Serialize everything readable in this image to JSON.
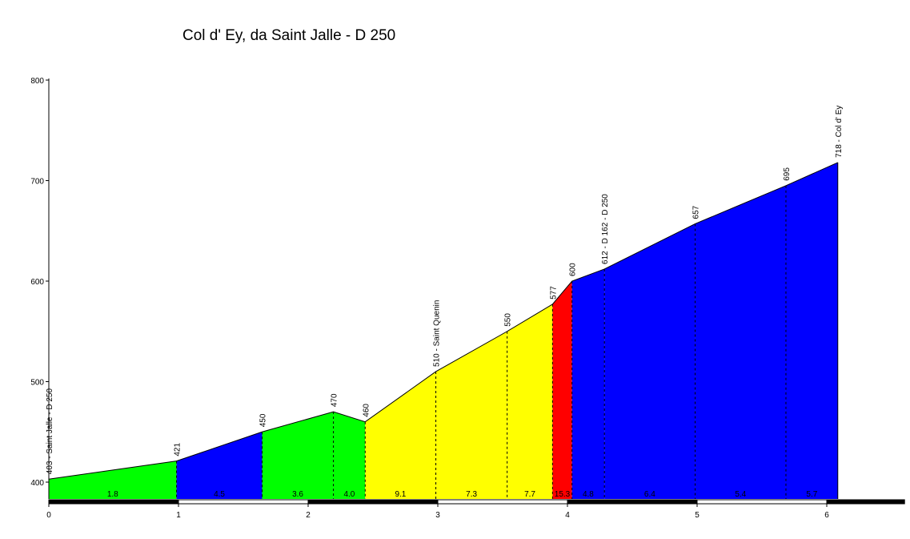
{
  "chart_data": {
    "type": "area",
    "title": "Col d' Ey, da Saint Jalle - D 250",
    "xlabel": "",
    "ylabel": "",
    "xlim": [
      0,
      6.6
    ],
    "ylim": [
      385,
      800
    ],
    "x_ticks": [
      0,
      1,
      2,
      3,
      4,
      5,
      6
    ],
    "y_ticks": [
      400,
      500,
      600,
      700,
      800
    ],
    "grid": false,
    "profile": [
      {
        "x": 0,
        "y": 403
      },
      {
        "x": 0.985,
        "y": 421
      },
      {
        "x": 1.645,
        "y": 450
      },
      {
        "x": 2.195,
        "y": 470
      },
      {
        "x": 2.44,
        "y": 460
      },
      {
        "x": 2.985,
        "y": 510
      },
      {
        "x": 3.535,
        "y": 550
      },
      {
        "x": 3.885,
        "y": 577
      },
      {
        "x": 4.035,
        "y": 600
      },
      {
        "x": 4.285,
        "y": 612
      },
      {
        "x": 4.985,
        "y": 657
      },
      {
        "x": 5.685,
        "y": 695
      },
      {
        "x": 6.085,
        "y": 718
      }
    ],
    "segments": [
      {
        "start": 0,
        "end": 0.985,
        "gradient": "1.8",
        "color": "#00ff00"
      },
      {
        "start": 0.985,
        "end": 1.645,
        "gradient": "4.5",
        "color": "#0000ff"
      },
      {
        "start": 1.645,
        "end": 2.195,
        "gradient": "3.6",
        "color": "#00ff00"
      },
      {
        "start": 2.195,
        "end": 2.44,
        "gradient": "4.0",
        "color": "#00ff00"
      },
      {
        "start": 2.44,
        "end": 2.985,
        "gradient": "9.1",
        "color": "#ffff00"
      },
      {
        "start": 2.985,
        "end": 3.535,
        "gradient": "7.3",
        "color": "#ffff00"
      },
      {
        "start": 3.535,
        "end": 3.885,
        "gradient": "7.7",
        "color": "#ffff00"
      },
      {
        "start": 3.885,
        "end": 4.035,
        "gradient": "15.3",
        "color": "#ff0000"
      },
      {
        "start": 4.035,
        "end": 4.285,
        "gradient": "4.8",
        "color": "#0000ff"
      },
      {
        "start": 4.285,
        "end": 4.985,
        "gradient": "6.4",
        "color": "#0000ff"
      },
      {
        "start": 4.985,
        "end": 5.685,
        "gradient": "5.4",
        "color": "#0000ff"
      },
      {
        "start": 5.685,
        "end": 6.085,
        "gradient": "5.7",
        "color": "#0000ff"
      }
    ],
    "point_labels": [
      {
        "x": 0,
        "y": 403,
        "label": "403 - Saint Jalle - D 250"
      },
      {
        "x": 0.985,
        "y": 421,
        "label": "421"
      },
      {
        "x": 1.645,
        "y": 450,
        "label": "450"
      },
      {
        "x": 2.195,
        "y": 470,
        "label": "470"
      },
      {
        "x": 2.44,
        "y": 460,
        "label": "460"
      },
      {
        "x": 2.985,
        "y": 510,
        "label": "510 - Saint Quenin"
      },
      {
        "x": 3.535,
        "y": 550,
        "label": "550"
      },
      {
        "x": 3.885,
        "y": 577,
        "label": "577"
      },
      {
        "x": 4.035,
        "y": 600,
        "label": "600"
      },
      {
        "x": 4.285,
        "y": 612,
        "label": "612 - D 162 - D 250"
      },
      {
        "x": 4.985,
        "y": 657,
        "label": "657"
      },
      {
        "x": 5.685,
        "y": 695,
        "label": "695"
      },
      {
        "x": 6.085,
        "y": 718,
        "label": "718 - Col d' Ey"
      }
    ]
  }
}
